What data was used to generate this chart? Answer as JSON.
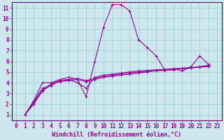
{
  "xlabel": "Windchill (Refroidissement éolien,°C)",
  "bg_color": "#cce8ee",
  "grid_color": "#99cccc",
  "line_color": "#990099",
  "xlim": [
    -0.5,
    23.5
  ],
  "ylim": [
    0.5,
    11.5
  ],
  "xticks": [
    0,
    1,
    2,
    3,
    4,
    5,
    6,
    7,
    8,
    9,
    10,
    11,
    12,
    13,
    14,
    15,
    16,
    17,
    18,
    19,
    20,
    21,
    22,
    23
  ],
  "yticks": [
    1,
    2,
    3,
    4,
    5,
    6,
    7,
    8,
    9,
    10,
    11
  ],
  "lines": [
    [
      1,
      2.3,
      4.0,
      4.0,
      4.3,
      4.5,
      4.3,
      2.7,
      6.0,
      9.2,
      11.3,
      11.3,
      10.7,
      8.0,
      7.3,
      6.5,
      5.2,
      5.3,
      5.1,
      5.5,
      6.5,
      5.7
    ],
    [
      1,
      2.2,
      3.5,
      3.7,
      4.2,
      4.3,
      4.0,
      3.5,
      4.5,
      4.7,
      4.8,
      4.9,
      5.0,
      5.1,
      5.15,
      5.2,
      5.25,
      5.3,
      5.35,
      5.4,
      5.45,
      5.5
    ],
    [
      1,
      2.0,
      3.2,
      3.8,
      4.1,
      4.2,
      4.3,
      4.1,
      4.3,
      4.5,
      4.6,
      4.7,
      4.8,
      4.9,
      5.0,
      5.1,
      5.15,
      5.2,
      5.3,
      5.35,
      5.5,
      5.6
    ],
    [
      1,
      2.1,
      3.3,
      3.9,
      4.2,
      4.3,
      4.4,
      4.2,
      4.4,
      4.6,
      4.7,
      4.8,
      4.9,
      5.0,
      5.05,
      5.15,
      5.2,
      5.25,
      5.35,
      5.4,
      5.5,
      5.6
    ]
  ],
  "line_x_start": 1,
  "marker": "+"
}
